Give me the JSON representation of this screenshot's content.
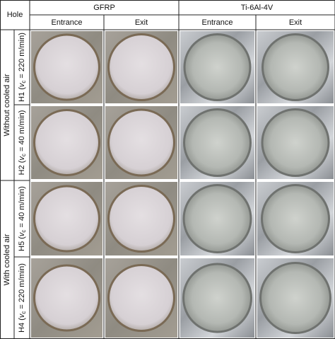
{
  "header": {
    "hole": "Hole",
    "materials": [
      "GFRP",
      "Ti-6Al-4V"
    ],
    "sides": [
      "Entrance",
      "Exit",
      "Entrance",
      "Exit"
    ]
  },
  "groups": [
    {
      "label": "Without cooled air",
      "rows": [
        {
          "prefix": "H1 (",
          "var": "v",
          "sub": "c",
          "suffix": " = 220 m/min)"
        },
        {
          "prefix": "H2 (",
          "var": "v",
          "sub": "c",
          "suffix": " = 40 m/min)"
        }
      ]
    },
    {
      "label": "With cooled air",
      "rows": [
        {
          "prefix": "H5 (",
          "var": "v",
          "sub": "c",
          "suffix": " = 40 m/min)"
        },
        {
          "prefix": "H4 (",
          "var": "v",
          "sub": "c",
          "suffix": " = 220 m/min)"
        }
      ]
    }
  ]
}
